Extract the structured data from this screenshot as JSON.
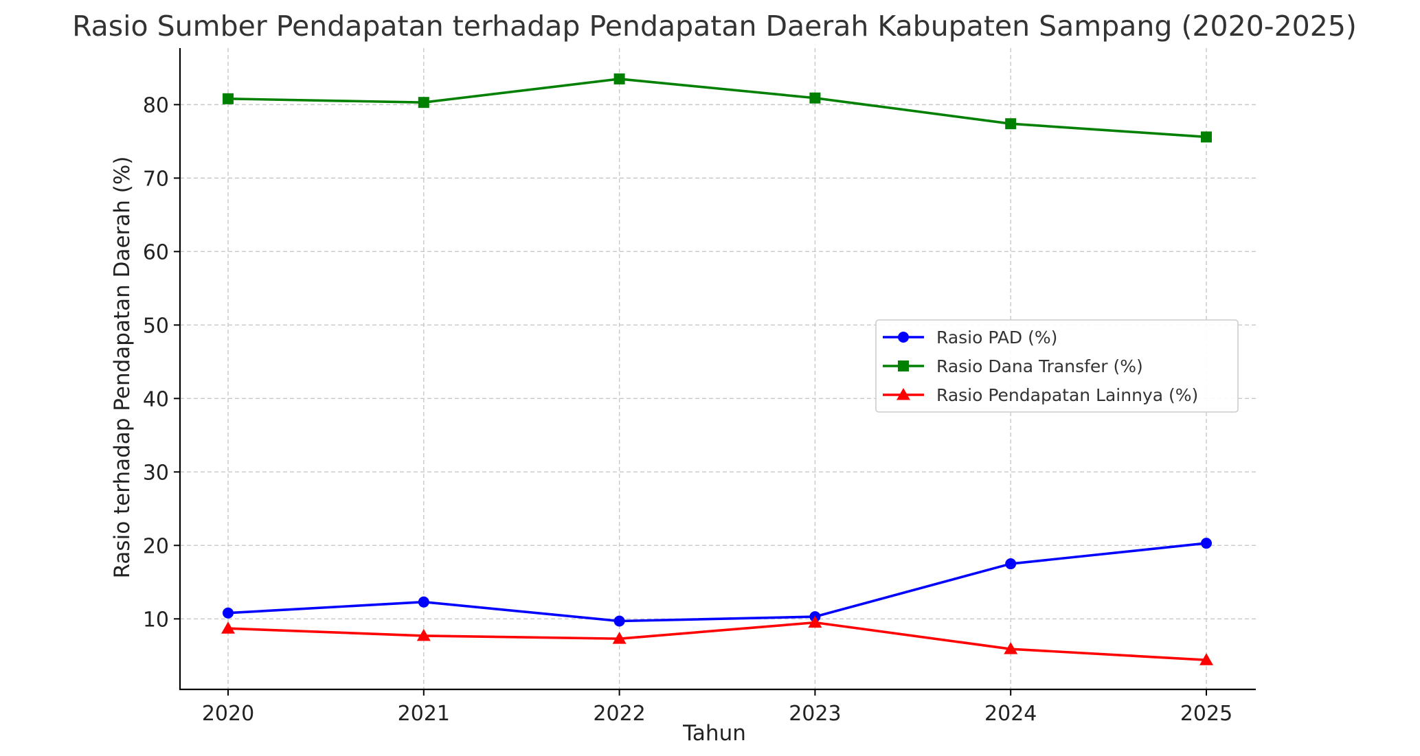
{
  "chart_data": {
    "type": "line",
    "title": "Rasio Sumber Pendapatan terhadap Pendapatan Daerah Kabupaten Sampang (2020-2025)",
    "xlabel": "Tahun",
    "ylabel": "Rasio terhadap Pendapatan Daerah (%)",
    "categories": [
      "2020",
      "2021",
      "2022",
      "2023",
      "2024",
      "2025"
    ],
    "y_ticks": [
      10,
      20,
      30,
      40,
      50,
      60,
      70,
      80
    ],
    "ylim": [
      0.4,
      87.7
    ],
    "grid": true,
    "legend_position": "center-right",
    "series": [
      {
        "name": "Rasio PAD (%)",
        "color": "#0000ff",
        "marker": "circle",
        "values": [
          10.8,
          12.3,
          9.7,
          10.3,
          17.5,
          20.3
        ]
      },
      {
        "name": "Rasio Dana Transfer (%)",
        "color": "#008000",
        "marker": "square",
        "values": [
          80.8,
          80.3,
          83.5,
          80.9,
          77.4,
          75.6
        ]
      },
      {
        "name": "Rasio Pendapatan Lainnya (%)",
        "color": "#ff0000",
        "marker": "triangle",
        "values": [
          8.7,
          7.7,
          7.3,
          9.5,
          5.9,
          4.4
        ]
      }
    ]
  }
}
